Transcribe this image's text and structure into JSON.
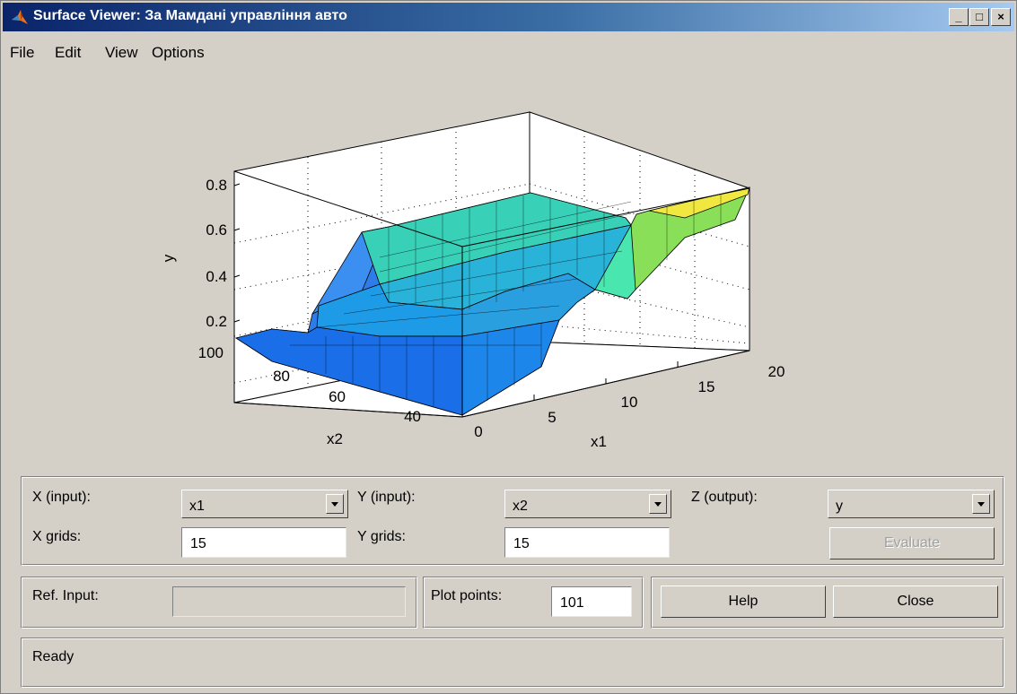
{
  "window": {
    "title": "Surface Viewer: За Мамдані управління авто",
    "controls": {
      "minimize": "_",
      "maximize": "□",
      "close": "×"
    }
  },
  "menu": {
    "items": [
      "File",
      "Edit",
      "View",
      "Options"
    ]
  },
  "plot": {
    "type": "surface-3d",
    "zlabel": "y",
    "xlabel": "x1",
    "ylabel": "x2",
    "z_ticks": [
      "0.8",
      "0.6",
      "0.4",
      "0.2"
    ],
    "x1_ticks": [
      "0",
      "5",
      "10",
      "15",
      "20"
    ],
    "x2_ticks": [
      "100",
      "80",
      "60",
      "40"
    ]
  },
  "controls": {
    "x_input_label": "X (input):",
    "x_input_value": "x1",
    "y_input_label": "Y (input):",
    "y_input_value": "x2",
    "z_output_label": "Z (output):",
    "z_output_value": "y",
    "x_grids_label": "X grids:",
    "x_grids_value": "15",
    "y_grids_label": "Y grids:",
    "y_grids_value": "15",
    "evaluate_label": "Evaluate",
    "ref_input_label": "Ref. Input:",
    "ref_input_value": "",
    "plot_points_label": "Plot points:",
    "plot_points_value": "101",
    "help_label": "Help",
    "close_label": "Close"
  },
  "status": {
    "text": "Ready"
  }
}
